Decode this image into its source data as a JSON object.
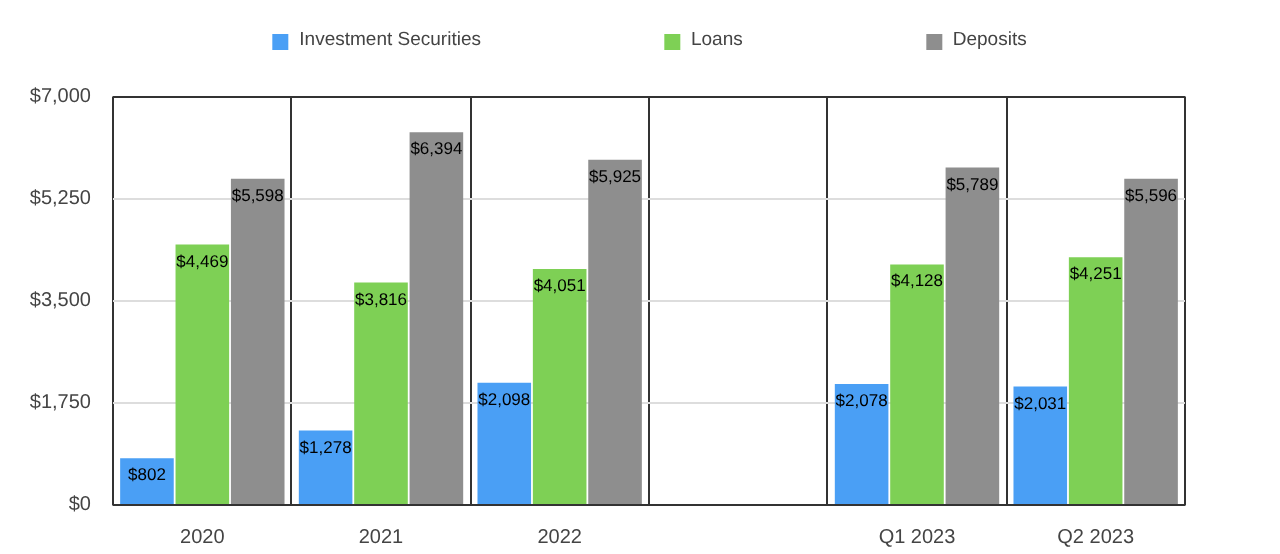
{
  "chart_data": {
    "type": "bar",
    "categories": [
      "2020",
      "2021",
      "2022",
      null,
      "Q1 2023",
      "Q2 2023"
    ],
    "series": [
      {
        "name": "Investment Securities",
        "color": "#4a9ff5",
        "values": [
          802,
          1278,
          2098,
          null,
          2078,
          2031
        ],
        "value_labels": [
          "$802",
          "$1,278",
          "$2,098",
          null,
          "$2,078",
          "$2,031"
        ]
      },
      {
        "name": "Loans",
        "color": "#7ed055",
        "values": [
          4469,
          3816,
          4051,
          null,
          4128,
          4251
        ],
        "value_labels": [
          "$4,469",
          "$3,816",
          "$4,051",
          null,
          "$4,128",
          "$4,251"
        ]
      },
      {
        "name": "Deposits",
        "color": "#8e8e8e",
        "values": [
          5598,
          6394,
          5925,
          null,
          5789,
          5596
        ],
        "value_labels": [
          "$5,598",
          "$6,394",
          "$5,925",
          null,
          "$5,789",
          "$5,596"
        ]
      }
    ],
    "ylim": [
      0,
      7000
    ],
    "yticks": [
      {
        "value": 0,
        "label": "$0"
      },
      {
        "value": 1750,
        "label": "$1,750"
      },
      {
        "value": 3500,
        "label": "$3,500"
      },
      {
        "value": 5250,
        "label": "$5,250"
      },
      {
        "value": 7000,
        "label": "$7,000"
      }
    ],
    "grid": true,
    "legend": "top"
  }
}
